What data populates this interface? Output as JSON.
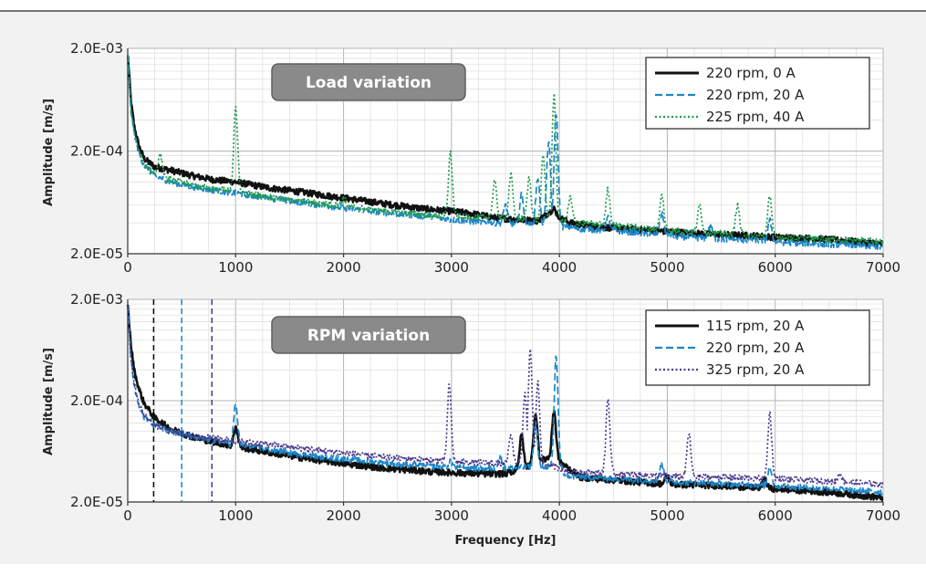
{
  "colors": {
    "black": "#111111",
    "blue": "#1a86c8",
    "green": "#1f9a4d",
    "purple": "#4b3a8c",
    "badge": "#8a8a8a",
    "frame": "#f2f2f2"
  },
  "chart_data": [
    {
      "type": "line",
      "badge": "Load variation",
      "ylabel": "Amplitude [m/s]",
      "xlabel": "",
      "yscale": "log",
      "xlim": [
        0,
        7000
      ],
      "ylim": [
        2e-05,
        0.002
      ],
      "xticks": [
        "0",
        "1000",
        "2000",
        "3000",
        "4000",
        "5000",
        "6000",
        "7000"
      ],
      "yticks": [
        "2.0E-05",
        "2.0E-04",
        "2.0E-03"
      ],
      "legend_position": "top-right",
      "grid": true,
      "series": [
        {
          "name": "220 rpm, 0 A",
          "style": "solid",
          "color": "#111111",
          "x": [
            0,
            30,
            60,
            100,
            150,
            250,
            400,
            600,
            800,
            1000,
            1300,
            1600,
            2000,
            2400,
            2800,
            3000,
            3200,
            3400,
            3600,
            3800,
            3950,
            4000,
            4100,
            4300,
            4600,
            5000,
            5400,
            5800,
            6000,
            6400,
            6800,
            7000
          ],
          "y": [
            0.0018,
            0.0006,
            0.00035,
            0.00023,
            0.00017,
            0.00014,
            0.00013,
            0.000115,
            0.000105,
            0.0001,
            8.8e-05,
            8e-05,
            7e-05,
            6.1e-05,
            5.4e-05,
            5.2e-05,
            4.9e-05,
            4.5e-05,
            4.3e-05,
            4.2e-05,
            5.5e-05,
            4.5e-05,
            4e-05,
            3.7e-05,
            3.5e-05,
            3.3e-05,
            3.1e-05,
            3e-05,
            2.9e-05,
            2.8e-05,
            2.6e-05,
            2.5e-05
          ],
          "peaks": []
        },
        {
          "name": "220 rpm, 20 A",
          "style": "dashed",
          "color": "#1a86c8",
          "x": [
            0,
            30,
            60,
            100,
            150,
            250,
            400,
            600,
            800,
            1000,
            1300,
            1600,
            2000,
            2400,
            2800,
            3000,
            3200,
            3400,
            3600,
            3800,
            4000,
            4200,
            4600,
            5000,
            5400,
            5800,
            6000,
            6400,
            6800,
            7000
          ],
          "y": [
            0.0018,
            0.0005,
            0.0003,
            0.0002,
            0.000145,
            0.000115,
            0.0001,
            9e-05,
            8.3e-05,
            7.8e-05,
            7e-05,
            6.3e-05,
            5.6e-05,
            5e-05,
            4.6e-05,
            4.3e-05,
            4.1e-05,
            4e-05,
            3.9e-05,
            3.8e-05,
            3.7e-05,
            3.5e-05,
            3.3e-05,
            3e-05,
            2.8e-05,
            2.7e-05,
            2.6e-05,
            2.5e-05,
            2.4e-05,
            2.3e-05
          ],
          "peaks": [
            {
              "x": 3500,
              "y": 6e-05
            },
            {
              "x": 3650,
              "y": 7.5e-05
            },
            {
              "x": 3800,
              "y": 0.00011
            },
            {
              "x": 3900,
              "y": 0.00025
            },
            {
              "x": 3970,
              "y": 0.00048
            },
            {
              "x": 4450,
              "y": 4.5e-05
            },
            {
              "x": 4950,
              "y": 5e-05
            },
            {
              "x": 5400,
              "y": 3.8e-05
            },
            {
              "x": 5950,
              "y": 4.2e-05
            }
          ]
        },
        {
          "name": "225 rpm, 40 A",
          "style": "dotted",
          "color": "#1f9a4d",
          "x": [
            0,
            30,
            60,
            100,
            150,
            250,
            400,
            600,
            800,
            1000,
            1300,
            1600,
            2000,
            2400,
            2800,
            3000,
            3200,
            3400,
            3600,
            3800,
            4000,
            4200,
            4600,
            5000,
            5400,
            5800,
            6000,
            6400,
            6800,
            7000
          ],
          "y": [
            0.0018,
            0.0005,
            0.0003,
            0.0002,
            0.00015,
            0.000122,
            0.000105,
            9.3e-05,
            8.6e-05,
            8e-05,
            7.2e-05,
            6.5e-05,
            5.8e-05,
            5.2e-05,
            4.7e-05,
            4.6e-05,
            4.5e-05,
            4.5e-05,
            4.4e-05,
            4.3e-05,
            4.2e-05,
            4e-05,
            3.7e-05,
            3.4e-05,
            3.2e-05,
            3e-05,
            2.9e-05,
            2.8e-05,
            2.7e-05,
            2.6e-05
          ],
          "peaks": [
            {
              "x": 300,
              "y": 0.00019
            },
            {
              "x": 1000,
              "y": 0.00055
            },
            {
              "x": 2000,
              "y": 7e-05
            },
            {
              "x": 2990,
              "y": 0.00019
            },
            {
              "x": 3400,
              "y": 0.0001
            },
            {
              "x": 3550,
              "y": 0.00012
            },
            {
              "x": 3720,
              "y": 0.00011
            },
            {
              "x": 3850,
              "y": 0.00018
            },
            {
              "x": 3950,
              "y": 0.0007
            },
            {
              "x": 4100,
              "y": 7e-05
            },
            {
              "x": 4450,
              "y": 8.5e-05
            },
            {
              "x": 4950,
              "y": 7.5e-05
            },
            {
              "x": 5300,
              "y": 6e-05
            },
            {
              "x": 5650,
              "y": 6e-05
            },
            {
              "x": 5950,
              "y": 7.5e-05
            }
          ]
        }
      ]
    },
    {
      "type": "line",
      "badge": "RPM variation",
      "ylabel": "Amplitude [m/s]",
      "xlabel": "Frequency [Hz]",
      "yscale": "log",
      "xlim": [
        0,
        7000
      ],
      "ylim": [
        2e-05,
        0.002
      ],
      "xticks": [
        "0",
        "1000",
        "2000",
        "3000",
        "4000",
        "5000",
        "6000",
        "7000"
      ],
      "yticks": [
        "2.0E-05",
        "2.0E-04",
        "2.0E-03"
      ],
      "legend_position": "top-right",
      "grid": true,
      "vlines": [
        {
          "x": 240,
          "color": "#111111"
        },
        {
          "x": 500,
          "color": "#1a86c8"
        },
        {
          "x": 780,
          "color": "#4b3a8c"
        }
      ],
      "series": [
        {
          "name": "115 rpm, 20 A",
          "style": "solid",
          "color": "#111111",
          "x": [
            0,
            30,
            60,
            100,
            150,
            250,
            400,
            600,
            800,
            1000,
            1300,
            1600,
            2000,
            2400,
            2800,
            3000,
            3300,
            3500,
            3700,
            3900,
            4000,
            4200,
            4500,
            5000,
            5500,
            6000,
            6500,
            7000
          ],
          "y": [
            0.0018,
            0.0007,
            0.0004,
            0.00027,
            0.00019,
            0.000135,
            0.000105,
            8.8e-05,
            7.8e-05,
            7.1e-05,
            6.2e-05,
            5.5e-05,
            4.8e-05,
            4.3e-05,
            4e-05,
            3.9e-05,
            3.8e-05,
            3.8e-05,
            4.5e-05,
            5.5e-05,
            5e-05,
            3.5e-05,
            3.3e-05,
            3e-05,
            2.9e-05,
            2.7e-05,
            2.5e-05,
            2.2e-05
          ],
          "peaks": [
            {
              "x": 1000,
              "y": 0.00011
            },
            {
              "x": 3650,
              "y": 9e-05
            },
            {
              "x": 3780,
              "y": 0.00015
            },
            {
              "x": 3950,
              "y": 0.00016
            },
            {
              "x": 5000,
              "y": 3.6e-05
            },
            {
              "x": 5900,
              "y": 3.4e-05
            }
          ]
        },
        {
          "name": "220 rpm, 20 A",
          "style": "dashed",
          "color": "#1a86c8",
          "x": [
            0,
            30,
            60,
            100,
            150,
            250,
            400,
            600,
            800,
            1000,
            1300,
            1600,
            2000,
            2400,
            2800,
            3000,
            3300,
            3500,
            3700,
            3900,
            4100,
            4500,
            5000,
            5500,
            6000,
            6500,
            7000
          ],
          "y": [
            0.0018,
            0.0005,
            0.00028,
            0.00018,
            0.00014,
            0.000115,
            0.0001,
            8.8e-05,
            8e-05,
            7.4e-05,
            6.6e-05,
            5.9e-05,
            5.3e-05,
            4.8e-05,
            4.5e-05,
            4.4e-05,
            4.3e-05,
            4.3e-05,
            4.4e-05,
            4.5e-05,
            3.6e-05,
            3.4e-05,
            3.2e-05,
            3e-05,
            2.9e-05,
            2.7e-05,
            2.5e-05
          ],
          "peaks": [
            {
              "x": 1000,
              "y": 0.00018
            },
            {
              "x": 2990,
              "y": 5e-05
            },
            {
              "x": 3450,
              "y": 5.5e-05
            },
            {
              "x": 3780,
              "y": 0.00012
            },
            {
              "x": 3970,
              "y": 0.00055
            },
            {
              "x": 4950,
              "y": 4.8e-05
            },
            {
              "x": 5950,
              "y": 4.5e-05
            }
          ]
        },
        {
          "name": "325 rpm, 20 A",
          "style": "dotted",
          "color": "#4b3a8c",
          "x": [
            0,
            30,
            60,
            100,
            150,
            250,
            400,
            600,
            800,
            1000,
            1300,
            1600,
            2000,
            2400,
            2800,
            3000,
            3300,
            3500,
            3700,
            3900,
            4100,
            4500,
            5000,
            5500,
            6000,
            6500,
            7000
          ],
          "y": [
            0.0018,
            0.0005,
            0.0003,
            0.00019,
            0.000145,
            0.000115,
            0.0001,
            9e-05,
            8.5e-05,
            8e-05,
            7.4e-05,
            6.8e-05,
            6.1e-05,
            5.5e-05,
            5.2e-05,
            5e-05,
            4.9e-05,
            4.8e-05,
            4.8e-05,
            4.7e-05,
            4e-05,
            3.8e-05,
            3.6e-05,
            3.5e-05,
            3.4e-05,
            3.2e-05,
            3e-05
          ],
          "peaks": [
            {
              "x": 2980,
              "y": 0.00028
            },
            {
              "x": 3550,
              "y": 9e-05
            },
            {
              "x": 3680,
              "y": 0.00023
            },
            {
              "x": 3730,
              "y": 0.00065
            },
            {
              "x": 3800,
              "y": 0.0003
            },
            {
              "x": 4450,
              "y": 0.00021
            },
            {
              "x": 5200,
              "y": 9.5e-05
            },
            {
              "x": 5950,
              "y": 0.00015
            },
            {
              "x": 6600,
              "y": 3.8e-05
            }
          ]
        }
      ]
    }
  ]
}
